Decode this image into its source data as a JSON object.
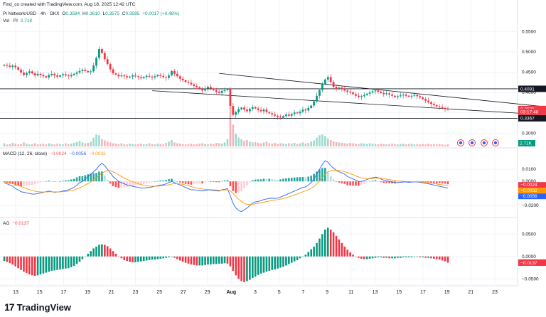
{
  "header": {
    "author_line": "Find_co created with TradingView.com, Aug 18, 2025 12:42 UTC",
    "symbol": "Pi Network/USD · 4h · OKX",
    "open_label": "O",
    "open": "0.3584",
    "high_label": "H",
    "high": "0.3610",
    "low_label": "L",
    "low": "0.3575",
    "close_label": "C",
    "close": "0.3595",
    "change": "+0.0017 (+0.48%)",
    "vol_label": "Vol · PI",
    "vol_value": "2.71K"
  },
  "macd_legend": {
    "label": "MACD (12, 26, close)",
    "v1": "−0.0024",
    "v2": "−0.0056",
    "v3": "−0.0032"
  },
  "ao_legend": {
    "label": "AO",
    "value": "−0.0137"
  },
  "footer": {
    "brand": "TradingView",
    "logo": "17"
  },
  "colors": {
    "up": "#089981",
    "down": "#f23645",
    "macd_line": "#2962ff",
    "signal_line": "#ff9800",
    "grid": "#f0f3fa"
  },
  "chart_data": [
    {
      "type": "candlestick",
      "x_tick_labels": [
        "13",
        "15",
        "17",
        "19",
        "21",
        "23",
        "25",
        "27",
        "29",
        "Aug",
        "3",
        "5",
        "7",
        "9",
        "11",
        "13",
        "15",
        "17",
        "19",
        "21",
        "23"
      ],
      "y_tick_labels": [
        "0.5500",
        "0.5000",
        "0.4500",
        "0.4000",
        "0.3500",
        "0.3000"
      ],
      "ylim": [
        0.285,
        0.575
      ],
      "price_tags": [
        {
          "value": "0.4091",
          "y": 0.4091,
          "style": "dark"
        },
        {
          "value": "0.3595",
          "y": 0.3595,
          "style": "red"
        },
        {
          "value": "03:17:48",
          "y": 0.3525,
          "style": "red"
        },
        {
          "value": "0.3367",
          "y": 0.3367,
          "style": "dark"
        }
      ],
      "horizontal_lines": [
        0.4091,
        0.3367
      ],
      "trendlines": [
        {
          "from": [
            8.5,
            0.447
          ],
          "to": [
            22.6,
            0.362
          ]
        },
        {
          "from": [
            5.7,
            0.4045
          ],
          "to": [
            21.6,
            0.347
          ]
        }
      ],
      "series_close": [
        0.468,
        0.466,
        0.463,
        0.466,
        0.462,
        0.456,
        0.449,
        0.443,
        0.448,
        0.452,
        0.447,
        0.442,
        0.446,
        0.443,
        0.44,
        0.437,
        0.443,
        0.446,
        0.442,
        0.439,
        0.442,
        0.445,
        0.442,
        0.44,
        0.443,
        0.446,
        0.449,
        0.453,
        0.456,
        0.453,
        0.45,
        0.452,
        0.466,
        0.485,
        0.507,
        0.497,
        0.482,
        0.47,
        0.457,
        0.447,
        0.444,
        0.44,
        0.442,
        0.44,
        0.437,
        0.439,
        0.442,
        0.44,
        0.438,
        0.435,
        0.438,
        0.441,
        0.439,
        0.437,
        0.44,
        0.443,
        0.441,
        0.438,
        0.436,
        0.442,
        0.453,
        0.446,
        0.44,
        0.434,
        0.43,
        0.426,
        0.424,
        0.42,
        0.416,
        0.413,
        0.409,
        0.405,
        0.41,
        0.414,
        0.41,
        0.406,
        0.402,
        0.399,
        0.404,
        0.406,
        0.408,
        0.367,
        0.345,
        0.352,
        0.359,
        0.363,
        0.358,
        0.354,
        0.36,
        0.364,
        0.361,
        0.357,
        0.354,
        0.358,
        0.352,
        0.349,
        0.346,
        0.343,
        0.34,
        0.338,
        0.342,
        0.346,
        0.343,
        0.347,
        0.351,
        0.349,
        0.353,
        0.358,
        0.356,
        0.362,
        0.368,
        0.378,
        0.392,
        0.406,
        0.42,
        0.432,
        0.438,
        0.426,
        0.414,
        0.408,
        0.412,
        0.409,
        0.405,
        0.402,
        0.4,
        0.396,
        0.392,
        0.389,
        0.391,
        0.394,
        0.397,
        0.4,
        0.403,
        0.405,
        0.402,
        0.399,
        0.396,
        0.398,
        0.395,
        0.392,
        0.389,
        0.391,
        0.393,
        0.395,
        0.392,
        0.39,
        0.392,
        0.394,
        0.391,
        0.388,
        0.384,
        0.38,
        0.376,
        0.372,
        0.369,
        0.366,
        0.364,
        0.362,
        0.36,
        0.3595
      ],
      "volume_relative": [
        0.08,
        0.05,
        0.06,
        0.09,
        0.07,
        0.05,
        0.06,
        0.1,
        0.07,
        0.05,
        0.06,
        0.08,
        0.05,
        0.06,
        0.07,
        0.05,
        0.08,
        0.06,
        0.05,
        0.07,
        0.06,
        0.05,
        0.08,
        0.06,
        0.07,
        0.09,
        0.11,
        0.14,
        0.1,
        0.08,
        0.09,
        0.12,
        0.22,
        0.3,
        0.28,
        0.18,
        0.15,
        0.12,
        0.1,
        0.08,
        0.07,
        0.06,
        0.08,
        0.06,
        0.05,
        0.07,
        0.06,
        0.05,
        0.06,
        0.07,
        0.05,
        0.06,
        0.08,
        0.06,
        0.05,
        0.07,
        0.06,
        0.05,
        0.09,
        0.12,
        0.16,
        0.1,
        0.08,
        0.07,
        0.06,
        0.05,
        0.06,
        0.07,
        0.05,
        0.06,
        0.07,
        0.08,
        0.06,
        0.05,
        0.07,
        0.06,
        0.09,
        0.08,
        0.07,
        0.1,
        0.18,
        1.0,
        0.55,
        0.32,
        0.22,
        0.18,
        0.14,
        0.16,
        0.12,
        0.1,
        0.11,
        0.09,
        0.08,
        0.1,
        0.12,
        0.08,
        0.07,
        0.09,
        0.06,
        0.08,
        0.07,
        0.06,
        0.08,
        0.07,
        0.09,
        0.06,
        0.08,
        0.1,
        0.07,
        0.09,
        0.12,
        0.15,
        0.22,
        0.28,
        0.3,
        0.26,
        0.2,
        0.16,
        0.13,
        0.11,
        0.1,
        0.09,
        0.08,
        0.07,
        0.09,
        0.08,
        0.07,
        0.06,
        0.08,
        0.07,
        0.06,
        0.08,
        0.07,
        0.06,
        0.05,
        0.07,
        0.06,
        0.05,
        0.06,
        0.07,
        0.06,
        0.05,
        0.06,
        0.07,
        0.05,
        0.06,
        0.07,
        0.05,
        0.06,
        0.05,
        0.06,
        0.05,
        0.07,
        0.05,
        0.06,
        0.05,
        0.06,
        0.05,
        0.04,
        0.05
      ],
      "volume_tag": "2.71K"
    },
    {
      "type": "macd",
      "y_tick_labels": [
        "0.0100",
        "0.0000",
        "−0.0200"
      ],
      "ylim": [
        -0.0275,
        0.0195
      ],
      "tags": [
        {
          "value": "−0.0024",
          "y": -0.0024,
          "color": "#f23645"
        },
        {
          "value": "−0.0032",
          "y": -0.0032,
          "color": "#ff9800"
        },
        {
          "value": "−0.0056",
          "y": -0.0056,
          "color": "#2962ff"
        }
      ],
      "macd": [
        -0.001,
        -0.002,
        -0.003,
        -0.004,
        -0.006,
        -0.007,
        -0.0085,
        -0.009,
        -0.0095,
        -0.01,
        -0.0105,
        -0.0105,
        -0.01,
        -0.0095,
        -0.009,
        -0.0085,
        -0.008,
        -0.0085,
        -0.009,
        -0.0088,
        -0.0085,
        -0.008,
        -0.0075,
        -0.007,
        -0.006,
        -0.005,
        -0.003,
        -0.001,
        0.0,
        0.002,
        0.004,
        0.006,
        0.008,
        0.01,
        0.013,
        0.015,
        0.013,
        0.01,
        0.007,
        0.004,
        0.002,
        0.0,
        -0.001,
        -0.002,
        -0.003,
        -0.0035,
        -0.004,
        -0.0045,
        -0.005,
        -0.0055,
        -0.0055,
        -0.0052,
        -0.005,
        -0.0045,
        -0.004,
        -0.0035,
        -0.003,
        -0.0028,
        -0.002,
        -0.001,
        0.0,
        -0.001,
        -0.002,
        -0.003,
        -0.004,
        -0.005,
        -0.006,
        -0.007,
        -0.007,
        -0.0072,
        -0.0075,
        -0.008,
        -0.0075,
        -0.007,
        -0.0072,
        -0.0075,
        -0.0078,
        -0.008,
        -0.007,
        -0.0065,
        -0.006,
        -0.012,
        -0.018,
        -0.022,
        -0.024,
        -0.025,
        -0.0235,
        -0.022,
        -0.02,
        -0.018,
        -0.017,
        -0.0165,
        -0.016,
        -0.015,
        -0.0145,
        -0.014,
        -0.014,
        -0.014,
        -0.0138,
        -0.013,
        -0.012,
        -0.011,
        -0.01,
        -0.009,
        -0.008,
        -0.007,
        -0.006,
        -0.005,
        -0.0045,
        -0.003,
        -0.001,
        0.002,
        0.006,
        0.01,
        0.014,
        0.017,
        0.016,
        0.013,
        0.011,
        0.009,
        0.008,
        0.007,
        0.006,
        0.004,
        0.003,
        0.002,
        0.001,
        0.0,
        0.0,
        0.0005,
        0.0015,
        0.0025,
        0.003,
        0.0035,
        0.003,
        0.002,
        0.001,
        0.0005,
        0.0,
        -0.0005,
        -0.001,
        -0.001,
        -0.0008,
        -0.0005,
        -0.0005,
        -0.0008,
        -0.0006,
        -0.0004,
        -0.0005,
        -0.0008,
        -0.0012,
        -0.0016,
        -0.002,
        -0.0025,
        -0.003,
        -0.0035,
        -0.004,
        -0.0045,
        -0.005,
        -0.0056
      ],
      "signal": [
        -0.0005,
        -0.0008,
        -0.0012,
        -0.0018,
        -0.0025,
        -0.0033,
        -0.0042,
        -0.0051,
        -0.006,
        -0.0068,
        -0.0075,
        -0.0081,
        -0.0085,
        -0.0087,
        -0.0088,
        -0.0087,
        -0.0086,
        -0.0086,
        -0.0087,
        -0.0087,
        -0.0086,
        -0.0085,
        -0.0083,
        -0.008,
        -0.0076,
        -0.0071,
        -0.0063,
        -0.0053,
        -0.0043,
        -0.0031,
        -0.0018,
        -0.0004,
        0.0012,
        0.003,
        0.0049,
        0.0068,
        0.0081,
        0.0088,
        0.0088,
        0.008,
        0.0068,
        0.0054,
        0.0041,
        0.0029,
        0.0017,
        0.0007,
        -0.0002,
        -0.0011,
        -0.0019,
        -0.0026,
        -0.0032,
        -0.0036,
        -0.0039,
        -0.004,
        -0.004,
        -0.0039,
        -0.0037,
        -0.0035,
        -0.0032,
        -0.0028,
        -0.0022,
        -0.0019,
        -0.0019,
        -0.0021,
        -0.0025,
        -0.003,
        -0.0036,
        -0.0043,
        -0.0049,
        -0.0054,
        -0.0059,
        -0.0063,
        -0.0066,
        -0.0067,
        -0.0068,
        -0.007,
        -0.0071,
        -0.0073,
        -0.0073,
        -0.0072,
        -0.007,
        -0.008,
        -0.01,
        -0.0124,
        -0.0147,
        -0.0167,
        -0.0181,
        -0.0189,
        -0.0191,
        -0.0189,
        -0.0185,
        -0.0181,
        -0.0177,
        -0.0172,
        -0.0167,
        -0.0162,
        -0.0158,
        -0.0154,
        -0.0151,
        -0.0147,
        -0.0142,
        -0.0135,
        -0.0128,
        -0.012,
        -0.0112,
        -0.0104,
        -0.0095,
        -0.0086,
        -0.0078,
        -0.0069,
        -0.0057,
        -0.0042,
        -0.0021,
        0.0003,
        0.003,
        0.0058,
        0.0078,
        0.0089,
        0.0093,
        0.0093,
        0.009,
        0.0086,
        0.0081,
        0.0073,
        0.0064,
        0.0055,
        0.0046,
        0.0037,
        0.0029,
        0.0024,
        0.0022,
        0.0022,
        0.0024,
        0.0026,
        0.0027,
        0.0026,
        0.0023,
        0.0019,
        0.0015,
        0.0011,
        0.0007,
        0.0003,
        0.0001,
        0.0,
        -0.0001,
        -0.0002,
        -0.0003,
        -0.0003,
        -0.0003,
        -0.0004,
        -0.0006,
        -0.0008,
        -0.0011,
        -0.0014,
        -0.0017,
        -0.0021,
        -0.0025,
        -0.0029,
        -0.0032,
        -0.0032
      ]
    },
    {
      "type": "ao",
      "y_tick_labels": [
        "0.0500",
        "0.0000",
        "−0.0500"
      ],
      "ylim": [
        -0.062,
        0.071
      ],
      "tag": {
        "value": "−0.0137",
        "y": -0.0137,
        "color": "#f23645"
      },
      "values": [
        -0.01,
        -0.012,
        -0.015,
        -0.018,
        -0.022,
        -0.026,
        -0.03,
        -0.034,
        -0.037,
        -0.04,
        -0.042,
        -0.043,
        -0.042,
        -0.04,
        -0.038,
        -0.036,
        -0.034,
        -0.032,
        -0.031,
        -0.03,
        -0.029,
        -0.028,
        -0.027,
        -0.026,
        -0.024,
        -0.021,
        -0.017,
        -0.012,
        -0.006,
        0.0,
        0.006,
        0.012,
        0.018,
        0.022,
        0.026,
        0.027,
        0.026,
        0.023,
        0.018,
        0.012,
        0.006,
        0.0,
        -0.004,
        -0.008,
        -0.01,
        -0.012,
        -0.013,
        -0.013,
        -0.012,
        -0.011,
        -0.01,
        -0.009,
        -0.008,
        -0.007,
        -0.007,
        -0.006,
        -0.005,
        -0.004,
        -0.003,
        -0.002,
        -0.001,
        -0.003,
        -0.006,
        -0.009,
        -0.012,
        -0.014,
        -0.016,
        -0.018,
        -0.019,
        -0.02,
        -0.02,
        -0.02,
        -0.019,
        -0.018,
        -0.018,
        -0.017,
        -0.017,
        -0.016,
        -0.016,
        -0.015,
        -0.016,
        -0.022,
        -0.032,
        -0.042,
        -0.05,
        -0.055,
        -0.057,
        -0.055,
        -0.052,
        -0.048,
        -0.045,
        -0.041,
        -0.038,
        -0.036,
        -0.034,
        -0.032,
        -0.03,
        -0.029,
        -0.027,
        -0.025,
        -0.023,
        -0.02,
        -0.017,
        -0.014,
        -0.011,
        -0.008,
        -0.004,
        0.0,
        0.004,
        0.01,
        0.016,
        0.022,
        0.03,
        0.04,
        0.05,
        0.06,
        0.064,
        0.06,
        0.054,
        0.046,
        0.038,
        0.03,
        0.022,
        0.015,
        0.009,
        0.004,
        0.0,
        -0.003,
        -0.005,
        -0.006,
        -0.006,
        -0.005,
        -0.004,
        -0.003,
        -0.002,
        -0.002,
        -0.003,
        -0.003,
        -0.004,
        -0.004,
        -0.004,
        -0.003,
        -0.003,
        -0.002,
        -0.002,
        -0.002,
        -0.002,
        -0.001,
        -0.001,
        -0.002,
        -0.002,
        -0.003,
        -0.003,
        -0.004,
        -0.005,
        -0.006,
        -0.007,
        -0.009,
        -0.011,
        -0.0137
      ]
    }
  ]
}
